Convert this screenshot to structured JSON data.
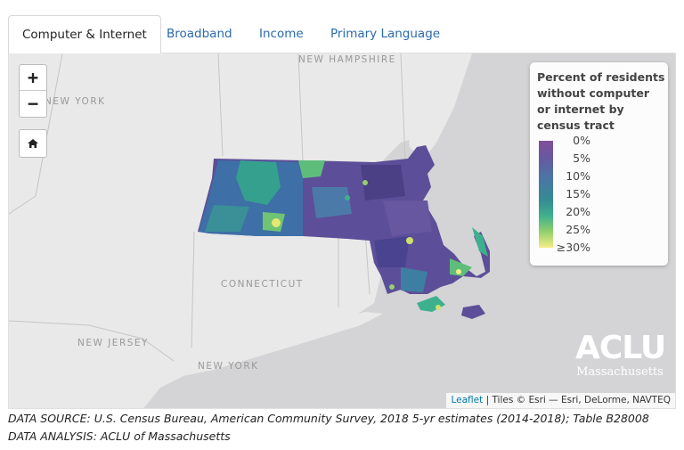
{
  "tabs": [
    {
      "label": "Computer & Internet",
      "active": true
    },
    {
      "label": "Broadband",
      "active": false
    },
    {
      "label": "Income",
      "active": false
    },
    {
      "label": "Primary Language",
      "active": false
    }
  ],
  "map": {
    "controls": {
      "zoom_in": "+",
      "zoom_out": "−",
      "home_icon": "home-icon"
    },
    "place_labels": {
      "new_hampshire": "NEW HAMPSHIRE",
      "new_york_top": "NEW YORK",
      "connecticut": "CONNECTICUT",
      "new_jersey": "NEW JERSEY",
      "new_york_bottom": "NEW YORK"
    },
    "legend": {
      "title": "Percent of residents without computer or internet by census tract",
      "ticks": [
        "0%",
        "5%",
        "10%",
        "15%",
        "20%",
        "25%",
        "≥30%"
      ],
      "colors": [
        "#7f4f98",
        "#4a76a6",
        "#348b93",
        "#3fb08d",
        "#93cf6c",
        "#f6ee86"
      ]
    },
    "brand": {
      "name": "ACLU",
      "sub": "Massachusetts"
    },
    "attribution": {
      "link": "Leaflet",
      "text": "| Tiles © Esri — Esri, DeLorme, NAVTEQ"
    }
  },
  "source": {
    "line1": "DATA SOURCE: U.S. Census Bureau, American Community Survey, 2018 5-yr estimates (2014-2018); Table B28008",
    "line2": "DATA ANALYSIS: ACLU of Massachusetts"
  }
}
